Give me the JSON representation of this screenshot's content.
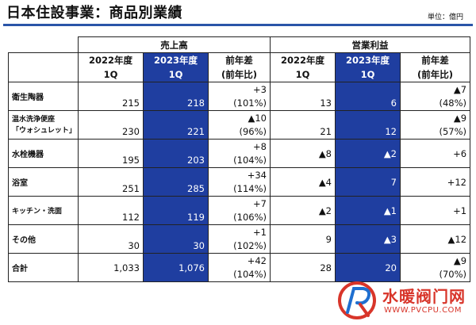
{
  "header": {
    "title": "日本住設事業：商品別業績",
    "unit": "単位：億円"
  },
  "table": {
    "groups": {
      "sales": "売上高",
      "profit": "営業利益"
    },
    "col_headers": {
      "y2022": [
        "2022年度",
        "1Q"
      ],
      "y2023": [
        "2023年度",
        "1Q"
      ],
      "diff": [
        "前年差",
        "(前年比)"
      ]
    },
    "rows": [
      {
        "item": [
          "衛生陶器"
        ],
        "s22": "215",
        "s23": "218",
        "sd": [
          "+3",
          "(101%)"
        ],
        "p22": "13",
        "p23": "6",
        "pd": [
          "▲7",
          "(48%)"
        ]
      },
      {
        "item": [
          "温水洗浄便座",
          "「ウォシュレット」"
        ],
        "s22": "230",
        "s23": "221",
        "sd": [
          "▲10",
          "(96%)"
        ],
        "p22": "21",
        "p23": "12",
        "pd": [
          "▲9",
          "(57%)"
        ]
      },
      {
        "item": [
          "水栓機器"
        ],
        "s22": "195",
        "s23": "203",
        "sd": [
          "+8",
          "(104%)"
        ],
        "p22": "▲8",
        "p23": "▲2",
        "pd": [
          "+6"
        ]
      },
      {
        "item": [
          "浴室"
        ],
        "s22": "251",
        "s23": "285",
        "sd": [
          "+34",
          "(114%)"
        ],
        "p22": "▲4",
        "p23": "7",
        "pd": [
          "+12"
        ]
      },
      {
        "item": [
          "キッチン・洗面"
        ],
        "s22": "112",
        "s23": "119",
        "sd": [
          "+7",
          "(106%)"
        ],
        "p22": "▲2",
        "p23": "▲1",
        "pd": [
          "+1"
        ]
      },
      {
        "item": [
          "その他"
        ],
        "s22": "30",
        "s23": "30",
        "sd": [
          "+1",
          "(102%)"
        ],
        "p22": "9",
        "p23": "▲3",
        "pd": [
          "▲12"
        ]
      }
    ],
    "total": {
      "item": "合計",
      "s22": "1,033",
      "s23": "1,076",
      "sd": [
        "+42",
        "(104%)"
      ],
      "p22": "28",
      "p23": "20",
      "pd": [
        "▲9",
        "(70%)"
      ]
    }
  },
  "watermark": {
    "text": "水暖阀门网",
    "url": "WWW.PVCPU.COM"
  },
  "colors": {
    "accent": "#1f3ea0",
    "rule": "#2a55a8",
    "watermark": "#d8352a"
  }
}
